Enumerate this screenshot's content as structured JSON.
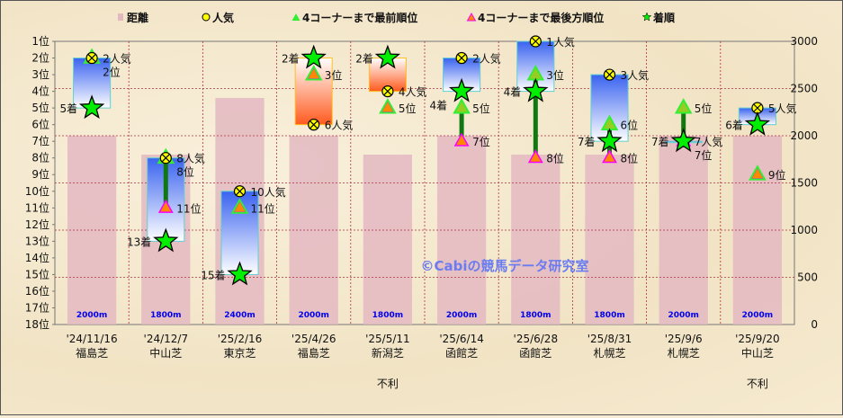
{
  "chart_data": {
    "type": "bar",
    "legend": [
      "距離",
      "人気",
      "4コーナーまで最前順位",
      "4コーナーまで最後方順位",
      "着順"
    ],
    "legend_placement": "top",
    "left_axis": {
      "ticks": [
        "1位",
        "2位",
        "3位",
        "4位",
        "5位",
        "6位",
        "7位",
        "8位",
        "9位",
        "10位",
        "11位",
        "12位",
        "13位",
        "14位",
        "15位",
        "16位",
        "17位",
        "18位"
      ],
      "range": [
        1,
        18
      ],
      "inverted": true
    },
    "right_axis": {
      "ticks": [
        0,
        500,
        1000,
        1500,
        2000,
        2500,
        3000
      ],
      "range": [
        0,
        3000
      ]
    },
    "grid": true,
    "races": [
      {
        "date": "'24/11/16",
        "course": "福島芝",
        "distance": 2000,
        "distance_label": "2000m",
        "popularity": 2,
        "front": 2,
        "rear": 2,
        "finish": 5,
        "note": ""
      },
      {
        "date": "'24/12/7",
        "course": "中山芝",
        "distance": 1800,
        "distance_label": "1800m",
        "popularity": 8,
        "front": 8,
        "rear": 11,
        "finish": 13,
        "note": ""
      },
      {
        "date": "'25/2/16",
        "course": "東京芝",
        "distance": 2400,
        "distance_label": "2400m",
        "popularity": 10,
        "front": 11,
        "rear": 11,
        "finish": 15,
        "note": ""
      },
      {
        "date": "'25/4/26",
        "course": "福島芝",
        "distance": 2000,
        "distance_label": "2000m",
        "popularity": 6,
        "front": 3,
        "rear": 3,
        "finish": 2,
        "note": ""
      },
      {
        "date": "'25/5/11",
        "course": "新潟芝",
        "distance": 1800,
        "distance_label": "1800m",
        "popularity": 4,
        "front": 5,
        "rear": 5,
        "finish": 2,
        "note": "不利"
      },
      {
        "date": "'25/6/14",
        "course": "函館芝",
        "distance": 2000,
        "distance_label": "2000m",
        "popularity": 2,
        "front": 5,
        "rear": 7,
        "finish": 4,
        "note": ""
      },
      {
        "date": "'25/6/28",
        "course": "函館芝",
        "distance": 1800,
        "distance_label": "1800m",
        "popularity": 1,
        "front": 3,
        "rear": 8,
        "finish": 4,
        "note": ""
      },
      {
        "date": "'25/8/31",
        "course": "札幌芝",
        "distance": 1800,
        "distance_label": "1800m",
        "popularity": 3,
        "front": 6,
        "rear": 8,
        "finish": 7,
        "note": ""
      },
      {
        "date": "'25/9/6",
        "course": "札幌芝",
        "distance": 2000,
        "distance_label": "2000m",
        "popularity": 7,
        "front": 5,
        "rear": 7,
        "finish": 7,
        "note": ""
      },
      {
        "date": "'25/9/20",
        "course": "中山芝",
        "distance": 2000,
        "distance_label": "2000m",
        "popularity": 5,
        "front": 9,
        "rear": 9,
        "finish": 6,
        "note": "不利"
      }
    ],
    "suffix": {
      "popularity": "人気",
      "position": "位",
      "finish": "着"
    },
    "watermark": "©Cabiの競馬データ研究室"
  },
  "colors": {
    "distance": "#e3b9c1",
    "popularity": "#ffff00",
    "front": "#33ee33",
    "rear": "#ff8800",
    "rear_edge": "#ff00ff",
    "finish": "#00ee00",
    "better_box": "#ff5a1e",
    "worse_box": "#3a63f0",
    "stick": "#117711",
    "distance_text": "#0000ee",
    "grid": "#b03040"
  }
}
